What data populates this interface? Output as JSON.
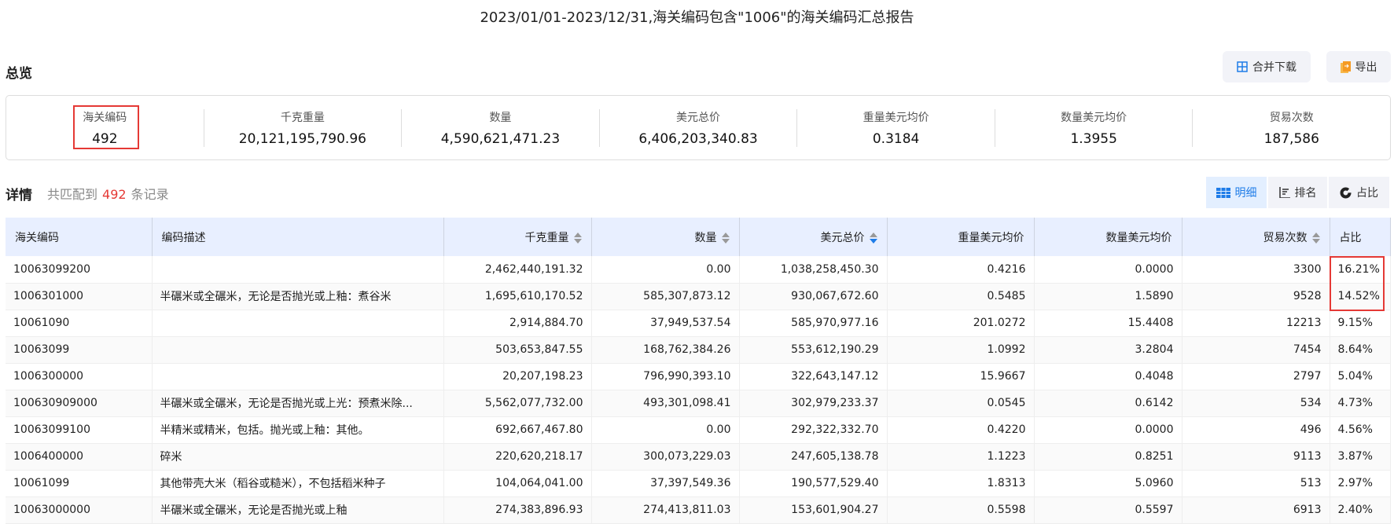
{
  "title": "2023/01/01-2023/12/31,海关编码包含\"1006\"的海关编码汇总报告",
  "overview": {
    "title": "总览",
    "merge_download": "合并下载",
    "export": "导出",
    "stats": [
      {
        "label": "海关编码",
        "value": "492"
      },
      {
        "label": "千克重量",
        "value": "20,121,195,790.96"
      },
      {
        "label": "数量",
        "value": "4,590,621,471.23"
      },
      {
        "label": "美元总价",
        "value": "6,406,203,340.83"
      },
      {
        "label": "重量美元均价",
        "value": "0.3184"
      },
      {
        "label": "数量美元均价",
        "value": "1.3955"
      },
      {
        "label": "贸易次数",
        "value": "187,586"
      }
    ]
  },
  "details": {
    "title": "详情",
    "prefix": "共匹配到",
    "count": "492",
    "suffix": "条记录",
    "tabs": [
      "明细",
      "排名",
      "占比"
    ],
    "active_tab": "明细",
    "columns": [
      "海关编码",
      "编码描述",
      "千克重量",
      "数量",
      "美元总价",
      "重量美元均价",
      "数量美元均价",
      "贸易次数",
      "占比"
    ],
    "sort": {
      "column": "美元总价",
      "direction": "desc"
    },
    "rows": [
      [
        "10063099200",
        "",
        "2,462,440,191.32",
        "0.00",
        "1,038,258,450.30",
        "0.4216",
        "0.0000",
        "3300",
        "16.21%"
      ],
      [
        "1006301000",
        "半碾米或全碾米，无论是否抛光或上釉：煮谷米",
        "1,695,610,170.52",
        "585,307,873.12",
        "930,067,672.60",
        "0.5485",
        "1.5890",
        "9528",
        "14.52%"
      ],
      [
        "10061090",
        "",
        "2,914,884.70",
        "37,949,537.54",
        "585,970,977.16",
        "201.0272",
        "15.4408",
        "12213",
        "9.15%"
      ],
      [
        "10063099",
        "",
        "503,653,847.55",
        "168,762,384.26",
        "553,612,190.29",
        "1.0992",
        "3.2804",
        "7454",
        "8.64%"
      ],
      [
        "1006300000",
        "",
        "20,207,198.23",
        "796,990,393.10",
        "322,643,147.12",
        "15.9667",
        "0.4048",
        "2797",
        "5.04%"
      ],
      [
        "100630909000",
        "半碾米或全碾米，无论是否抛光或上光：预煮米除...",
        "5,562,077,732.00",
        "493,301,098.41",
        "302,979,233.37",
        "0.0545",
        "0.6142",
        "534",
        "4.73%"
      ],
      [
        "10063099100",
        "半精米或精米，包括。抛光或上釉：其他。",
        "692,667,467.80",
        "0.00",
        "292,322,332.70",
        "0.4220",
        "0.0000",
        "496",
        "4.56%"
      ],
      [
        "1006400000",
        "碎米",
        "220,620,218.17",
        "300,073,229.03",
        "247,605,138.78",
        "1.1223",
        "0.8251",
        "9113",
        "3.87%"
      ],
      [
        "10061099",
        "其他带壳大米（稻谷或糙米），不包括稻米种子",
        "104,064,041.00",
        "37,397,549.36",
        "190,577,529.40",
        "1.8313",
        "5.0960",
        "513",
        "2.97%"
      ],
      [
        "10063000000",
        "半碾米或全碾米，无论是否抛光或上釉",
        "274,383,896.93",
        "274,413,811.03",
        "153,601,904.27",
        "0.5598",
        "0.5597",
        "6913",
        "2.40%"
      ]
    ]
  },
  "colors": {
    "accent": "#1e7ce8",
    "highlight": "#e53935",
    "header_bg": "#e8efff"
  }
}
